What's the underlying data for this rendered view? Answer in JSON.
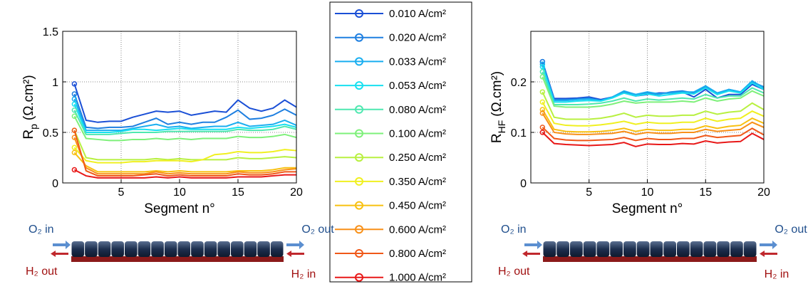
{
  "chart_data": [
    {
      "type": "line",
      "xlabel": "Segment n°",
      "ylabel": [
        "R",
        "p",
        "(Ω.cm²)"
      ],
      "xlim": [
        0,
        20
      ],
      "xticks": [
        5,
        10,
        15,
        20
      ],
      "ylim": [
        0,
        1.5
      ],
      "yticks": [
        0,
        0.5,
        1,
        1.5
      ],
      "grid": true,
      "x": [
        1,
        2,
        3,
        4,
        5,
        6,
        7,
        8,
        9,
        10,
        11,
        12,
        13,
        14,
        15,
        16,
        17,
        18,
        19,
        20
      ],
      "annotations": [
        "O₂ in",
        "O₂ out",
        "H₂ out",
        "H₂ in"
      ],
      "series": [
        {
          "name": "0.010 A/cm²",
          "color": "#1a4fd6",
          "values": [
            0.98,
            0.62,
            0.6,
            0.61,
            0.61,
            0.65,
            0.68,
            0.71,
            0.7,
            0.71,
            0.67,
            0.69,
            0.71,
            0.7,
            0.82,
            0.74,
            0.71,
            0.74,
            0.82,
            0.75
          ]
        },
        {
          "name": "0.020 A/cm²",
          "color": "#1e7fe0",
          "values": [
            0.88,
            0.55,
            0.54,
            0.55,
            0.55,
            0.56,
            0.6,
            0.64,
            0.58,
            0.6,
            0.58,
            0.6,
            0.6,
            0.65,
            0.72,
            0.63,
            0.64,
            0.67,
            0.73,
            0.67
          ]
        },
        {
          "name": "0.033 A/cm²",
          "color": "#19aef0",
          "values": [
            0.83,
            0.52,
            0.52,
            0.52,
            0.52,
            0.54,
            0.56,
            0.58,
            0.55,
            0.56,
            0.54,
            0.55,
            0.56,
            0.56,
            0.6,
            0.56,
            0.57,
            0.58,
            0.62,
            0.57
          ]
        },
        {
          "name": "0.053 A/cm²",
          "color": "#18e0f0",
          "values": [
            0.78,
            0.5,
            0.5,
            0.5,
            0.51,
            0.53,
            0.53,
            0.52,
            0.53,
            0.54,
            0.53,
            0.53,
            0.53,
            0.53,
            0.55,
            0.54,
            0.55,
            0.56,
            0.58,
            0.55
          ]
        },
        {
          "name": "0.080 A/cm²",
          "color": "#4ee8b0",
          "values": [
            0.72,
            0.48,
            0.48,
            0.48,
            0.49,
            0.5,
            0.5,
            0.5,
            0.51,
            0.51,
            0.51,
            0.51,
            0.51,
            0.51,
            0.53,
            0.52,
            0.52,
            0.53,
            0.56,
            0.53
          ]
        },
        {
          "name": "0.100 A/cm²",
          "color": "#7ef07a",
          "values": [
            0.66,
            0.44,
            0.43,
            0.42,
            0.42,
            0.43,
            0.43,
            0.44,
            0.43,
            0.44,
            0.43,
            0.44,
            0.44,
            0.44,
            0.46,
            0.45,
            0.45,
            0.46,
            0.48,
            0.45
          ]
        },
        {
          "name": "0.250 A/cm²",
          "color": "#b8f040",
          "values": [
            0.52,
            0.25,
            0.23,
            0.23,
            0.23,
            0.23,
            0.23,
            0.24,
            0.23,
            0.24,
            0.23,
            0.23,
            0.23,
            0.23,
            0.25,
            0.24,
            0.24,
            0.25,
            0.26,
            0.25
          ]
        },
        {
          "name": "0.350 A/cm²",
          "color": "#f0f020",
          "values": [
            0.35,
            0.22,
            0.2,
            0.2,
            0.2,
            0.21,
            0.21,
            0.22,
            0.22,
            0.22,
            0.21,
            0.23,
            0.28,
            0.29,
            0.31,
            0.3,
            0.3,
            0.31,
            0.33,
            0.32
          ]
        },
        {
          "name": "0.450 A/cm²",
          "color": "#f8c010",
          "values": [
            0.3,
            0.17,
            0.11,
            0.11,
            0.11,
            0.11,
            0.11,
            0.12,
            0.11,
            0.12,
            0.11,
            0.11,
            0.11,
            0.11,
            0.12,
            0.12,
            0.12,
            0.13,
            0.15,
            0.15
          ]
        },
        {
          "name": "0.600 A/cm²",
          "color": "#f89018",
          "values": [
            0.45,
            0.15,
            0.09,
            0.09,
            0.09,
            0.09,
            0.09,
            0.11,
            0.09,
            0.1,
            0.09,
            0.09,
            0.09,
            0.09,
            0.11,
            0.1,
            0.1,
            0.11,
            0.13,
            0.14
          ]
        },
        {
          "name": "0.800 A/cm²",
          "color": "#f05818",
          "values": [
            0.52,
            0.12,
            0.07,
            0.07,
            0.07,
            0.07,
            0.08,
            0.09,
            0.07,
            0.08,
            0.07,
            0.07,
            0.07,
            0.07,
            0.09,
            0.08,
            0.08,
            0.09,
            0.11,
            0.11
          ]
        },
        {
          "name": "1.000 A/cm²",
          "color": "#e81818",
          "values": [
            0.13,
            0.07,
            0.05,
            0.05,
            0.05,
            0.05,
            0.05,
            0.06,
            0.05,
            0.06,
            0.05,
            0.05,
            0.05,
            0.05,
            0.06,
            0.06,
            0.06,
            0.07,
            0.08,
            0.08
          ]
        }
      ]
    },
    {
      "type": "line",
      "xlabel": "Segment n°",
      "ylabel": [
        "R",
        "HF",
        "(Ω.cm²)"
      ],
      "xlim": [
        0,
        20
      ],
      "xticks": [
        5,
        10,
        15,
        20
      ],
      "ylim": [
        0,
        0.3
      ],
      "yticks": [
        0,
        0.1,
        0.2
      ],
      "grid": true,
      "x": [
        1,
        2,
        3,
        4,
        5,
        6,
        7,
        8,
        9,
        10,
        11,
        12,
        13,
        14,
        15,
        16,
        17,
        18,
        19,
        20
      ],
      "annotations": [
        "O₂ in",
        "O₂ out",
        "H₂ out",
        "H₂ in"
      ],
      "series": [
        {
          "values": [
            0.24,
            0.167,
            0.167,
            0.168,
            0.17,
            0.165,
            0.17,
            0.178,
            0.172,
            0.175,
            0.178,
            0.178,
            0.18,
            0.17,
            0.185,
            0.168,
            0.175,
            0.175,
            0.195,
            0.185
          ]
        },
        {
          "values": [
            0.24,
            0.165,
            0.165,
            0.166,
            0.168,
            0.163,
            0.17,
            0.18,
            0.175,
            0.178,
            0.175,
            0.18,
            0.182,
            0.178,
            0.19,
            0.175,
            0.185,
            0.18,
            0.2,
            0.19
          ]
        },
        {
          "values": [
            0.235,
            0.163,
            0.163,
            0.165,
            0.166,
            0.163,
            0.17,
            0.182,
            0.175,
            0.18,
            0.176,
            0.178,
            0.18,
            0.18,
            0.192,
            0.178,
            0.185,
            0.18,
            0.202,
            0.188
          ]
        },
        {
          "values": [
            0.23,
            0.16,
            0.16,
            0.162,
            0.163,
            0.162,
            0.168,
            0.178,
            0.172,
            0.176,
            0.172,
            0.175,
            0.178,
            0.176,
            0.188,
            0.175,
            0.182,
            0.178,
            0.198,
            0.185
          ]
        },
        {
          "values": [
            0.22,
            0.155,
            0.155,
            0.155,
            0.156,
            0.158,
            0.162,
            0.168,
            0.162,
            0.166,
            0.164,
            0.166,
            0.168,
            0.166,
            0.175,
            0.168,
            0.172,
            0.172,
            0.188,
            0.178
          ]
        },
        {
          "values": [
            0.21,
            0.152,
            0.15,
            0.15,
            0.15,
            0.152,
            0.156,
            0.162,
            0.158,
            0.16,
            0.16,
            0.16,
            0.162,
            0.16,
            0.168,
            0.162,
            0.166,
            0.168,
            0.182,
            0.172
          ]
        },
        {
          "values": [
            0.18,
            0.13,
            0.126,
            0.126,
            0.126,
            0.128,
            0.132,
            0.138,
            0.13,
            0.134,
            0.132,
            0.132,
            0.134,
            0.134,
            0.142,
            0.136,
            0.14,
            0.142,
            0.158,
            0.145
          ]
        },
        {
          "values": [
            0.16,
            0.118,
            0.114,
            0.113,
            0.113,
            0.115,
            0.118,
            0.122,
            0.116,
            0.12,
            0.118,
            0.118,
            0.12,
            0.12,
            0.128,
            0.122,
            0.126,
            0.128,
            0.142,
            0.132
          ]
        },
        {
          "values": [
            0.145,
            0.106,
            0.102,
            0.101,
            0.101,
            0.102,
            0.104,
            0.108,
            0.102,
            0.106,
            0.104,
            0.104,
            0.106,
            0.106,
            0.113,
            0.108,
            0.112,
            0.114,
            0.128,
            0.118
          ]
        },
        {
          "values": [
            0.138,
            0.1,
            0.097,
            0.096,
            0.096,
            0.097,
            0.098,
            0.102,
            0.096,
            0.1,
            0.098,
            0.098,
            0.1,
            0.1,
            0.106,
            0.102,
            0.104,
            0.106,
            0.12,
            0.11
          ]
        },
        {
          "values": [
            0.11,
            0.088,
            0.085,
            0.084,
            0.084,
            0.085,
            0.086,
            0.09,
            0.084,
            0.088,
            0.086,
            0.086,
            0.088,
            0.088,
            0.094,
            0.09,
            0.092,
            0.094,
            0.108,
            0.095
          ]
        },
        {
          "values": [
            0.1,
            0.078,
            0.076,
            0.075,
            0.074,
            0.075,
            0.076,
            0.08,
            0.072,
            0.077,
            0.076,
            0.076,
            0.078,
            0.077,
            0.083,
            0.079,
            0.081,
            0.082,
            0.098,
            0.086
          ]
        }
      ]
    }
  ]
}
